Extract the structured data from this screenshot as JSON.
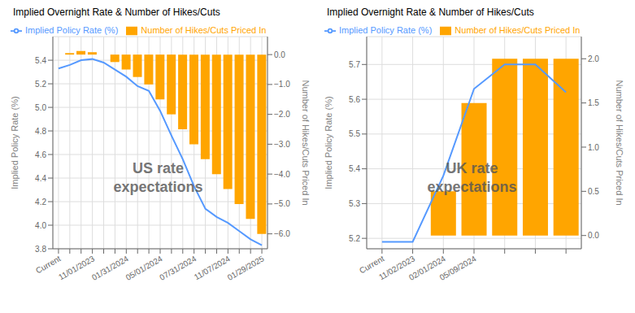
{
  "chart_data": [
    {
      "type": "line",
      "title": "Implied Overnight Rate & Number of Hikes/Cuts",
      "annotations": [
        "US rate\nexpectations"
      ],
      "categories": [
        "Current",
        null,
        null,
        "11/01/2023",
        null,
        null,
        "01/31/2024",
        null,
        null,
        "05/01/2024",
        null,
        null,
        "07/31/2024",
        null,
        null,
        "11/07/2024",
        null,
        null,
        "01/29/2025"
      ],
      "ylabel": "Implied Policy Rate (%)",
      "y2label": "Number of Hikes/Cuts Priced In",
      "ylim": [
        3.8,
        5.6
      ],
      "yticks": [
        3.8,
        {
          "value": 4.0,
          "label": "4.0"
        },
        4.2,
        4.4,
        4.6,
        4.8,
        {
          "value": 5.0,
          "label": "5.0"
        },
        5.2,
        5.4
      ],
      "y2lim": [
        -6.5,
        0.6
      ],
      "y2ticks": [
        {
          "value": 0.0,
          "label": "0.0"
        },
        {
          "value": -1.0,
          "label": "−1.0"
        },
        {
          "value": -2.0,
          "label": "−2.0"
        },
        {
          "value": -3.0,
          "label": "−3.0"
        },
        {
          "value": -4.0,
          "label": "−4.0"
        },
        {
          "value": -5.0,
          "label": "−5.0"
        },
        {
          "value": -6.0,
          "label": "−6.0"
        }
      ],
      "grid": true,
      "legend": "upper left",
      "series": [
        {
          "name": "Implied Policy Rate (%)",
          "type": "line",
          "color": "#5599ff",
          "values": [
            5.33,
            5.36,
            5.4,
            5.41,
            5.38,
            5.32,
            5.26,
            5.18,
            5.14,
            4.97,
            4.76,
            4.56,
            4.33,
            4.14,
            4.07,
            4.02,
            3.95,
            3.88,
            3.83
          ]
        },
        {
          "name": "Number of Hikes/Cuts Priced In",
          "type": "bar",
          "axis": "y2",
          "color": "#FFA500",
          "values": [
            null,
            0.05,
            0.12,
            0.08,
            0.0,
            -0.25,
            -0.5,
            -0.75,
            -1.0,
            -1.5,
            -2.0,
            -2.5,
            -3.0,
            -3.5,
            -4.0,
            -4.5,
            -5.0,
            -5.5,
            -6.0
          ]
        }
      ]
    },
    {
      "type": "line",
      "title": "Implied Overnight Rate & Number of Hikes/Cuts",
      "annotations": [
        "UK rate\nexpectations"
      ],
      "categories": [
        "Current",
        "11/02/2023",
        "02/01/2024",
        "05/09/2024",
        null,
        null,
        null
      ],
      "ylabel": "Implied Policy Rate (%)",
      "y2label": "Number of Hikes/Cuts Priced In",
      "ylim": [
        5.17,
        5.78
      ],
      "yticks": [
        5.2,
        5.3,
        5.4,
        5.5,
        5.6,
        5.7
      ],
      "y2lim": [
        -0.15,
        2.25
      ],
      "y2ticks": [
        {
          "value": 0.0,
          "label": "0.0"
        },
        0.5,
        {
          "value": 1.0,
          "label": "1.0"
        },
        1.5,
        {
          "value": 2.0,
          "label": "2.0"
        }
      ],
      "grid": true,
      "legend": "upper left",
      "series": [
        {
          "name": "Implied Policy Rate (%)",
          "type": "line",
          "color": "#5599ff",
          "values": [
            5.19,
            5.19,
            5.38,
            5.63,
            5.7,
            5.7,
            5.62
          ]
        },
        {
          "name": "Number of Hikes/Cuts Priced In",
          "type": "bar",
          "axis": "y2",
          "color": "#FFA500",
          "values": [
            null,
            0.0,
            0.5,
            1.5,
            2.0,
            2.0,
            2.0
          ]
        }
      ]
    }
  ]
}
